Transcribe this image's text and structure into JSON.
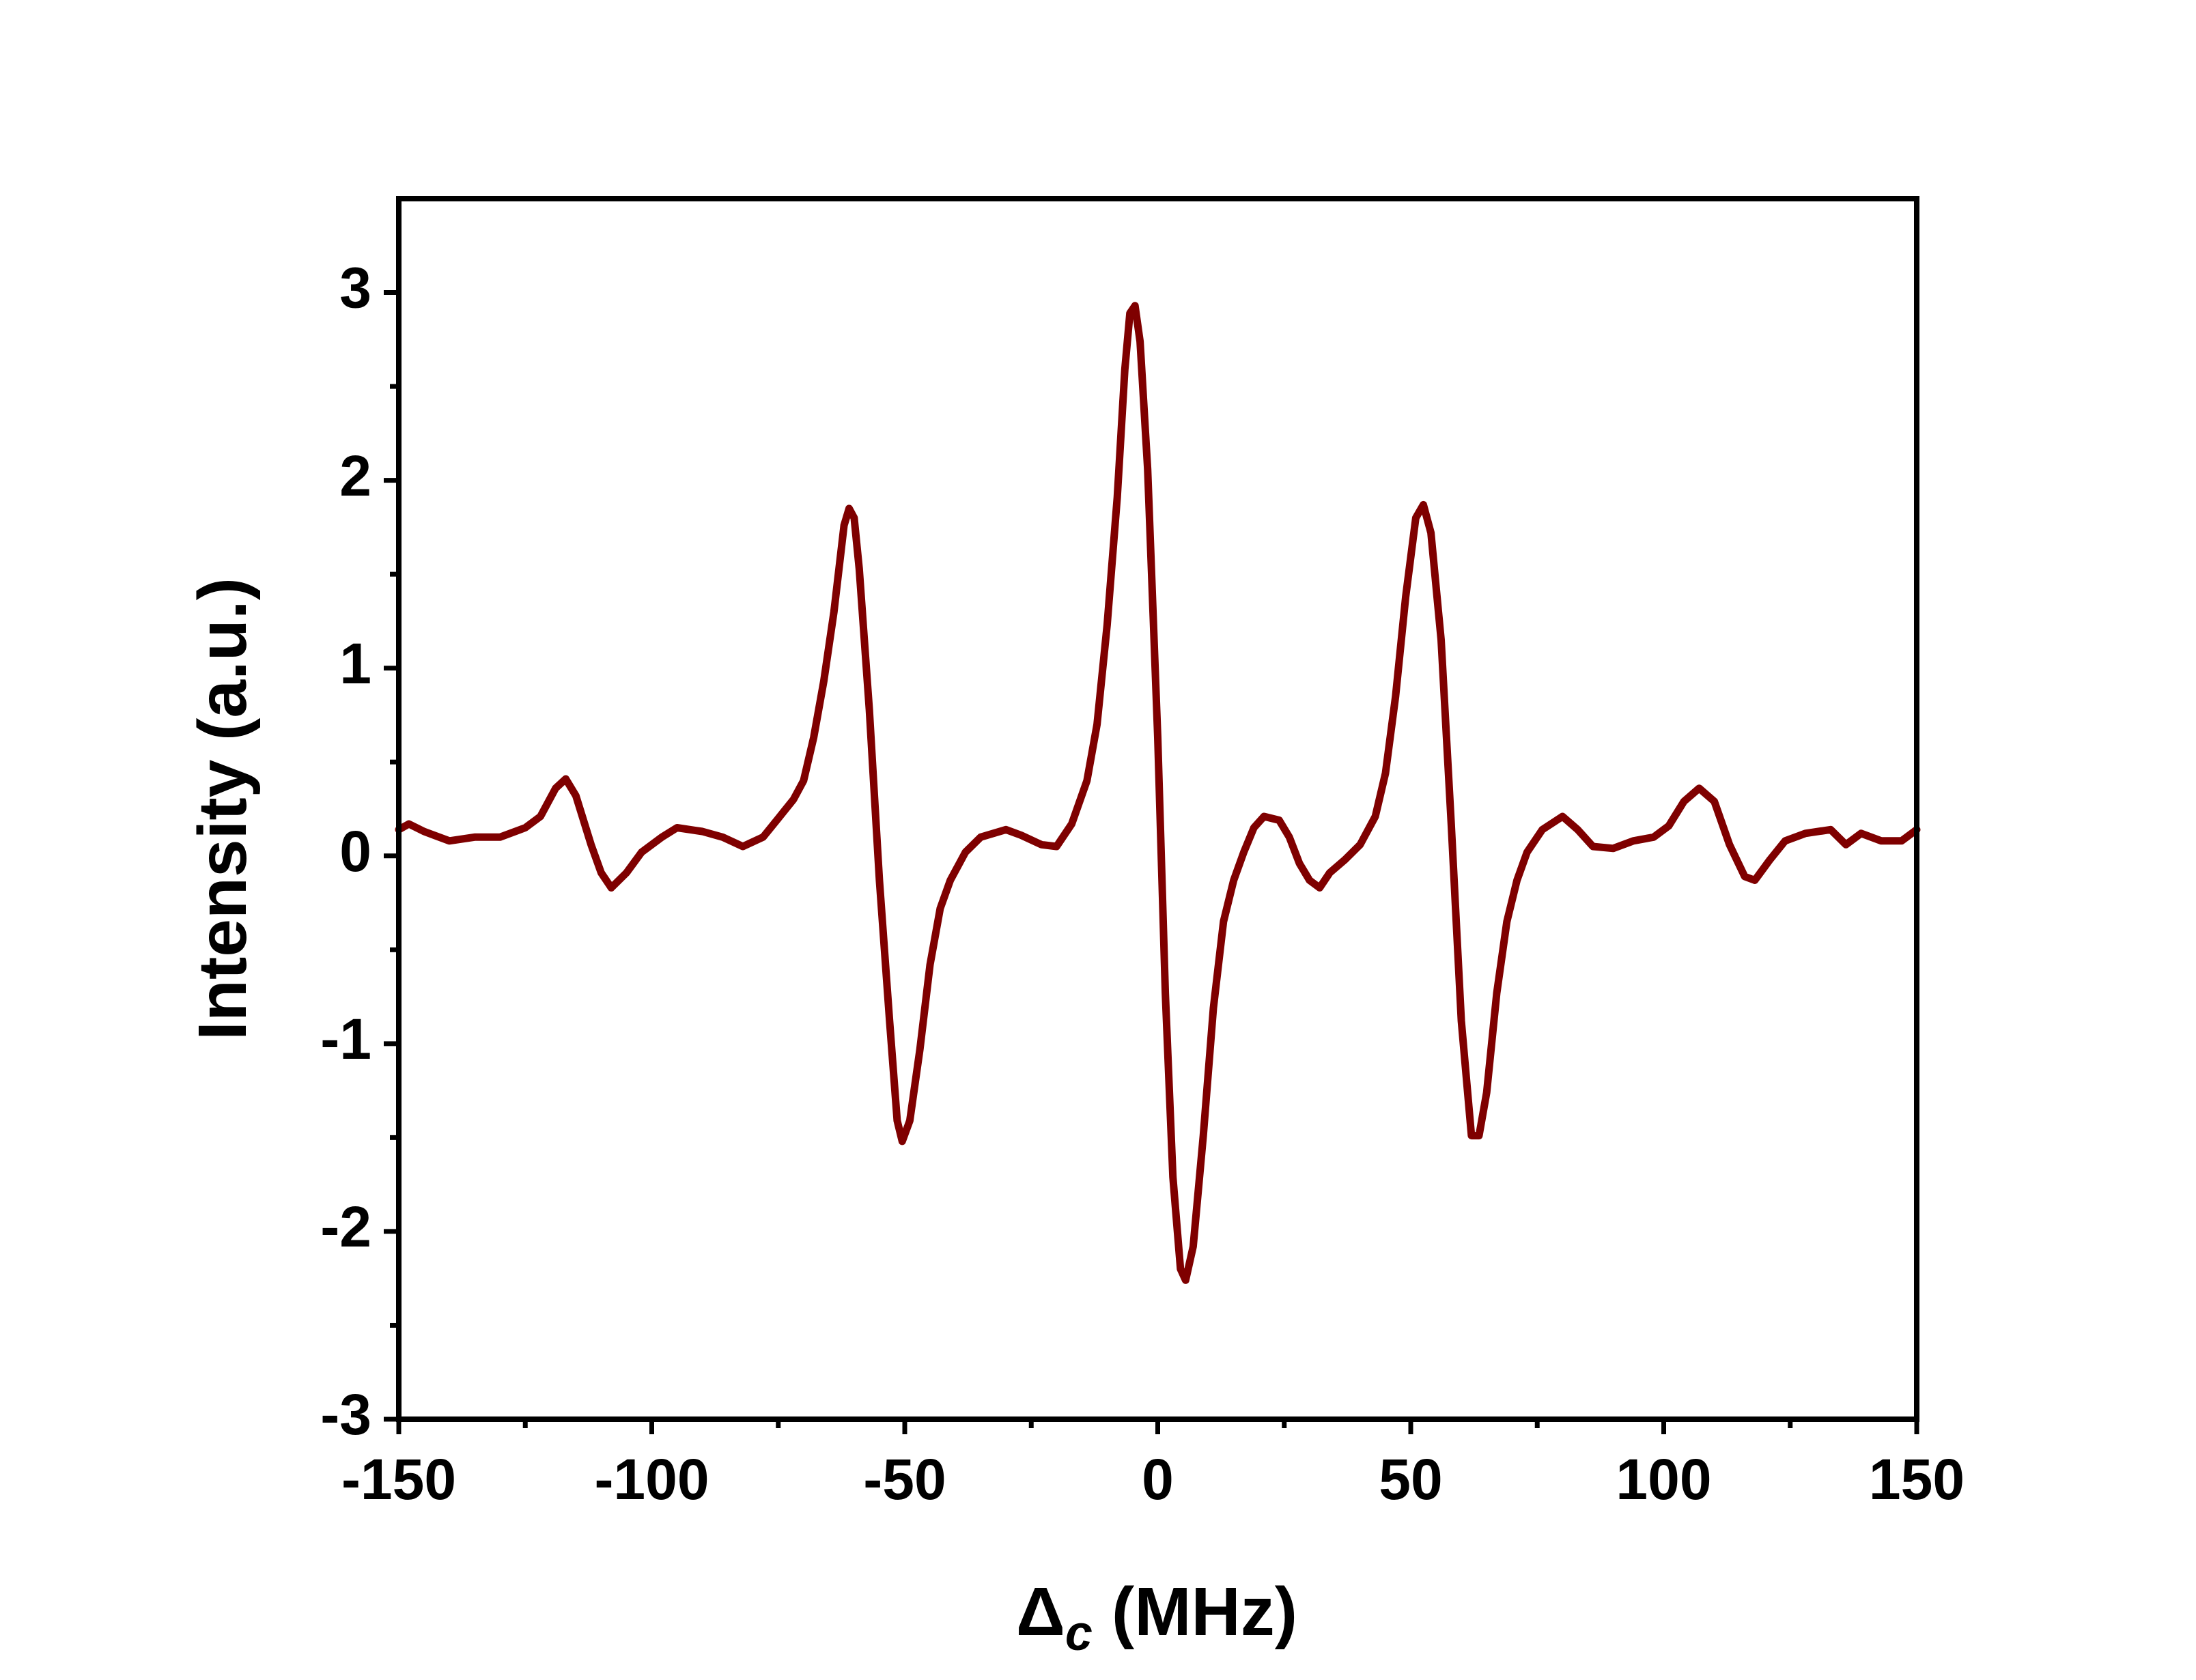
{
  "chart_data": {
    "type": "line",
    "x_label": {
      "symbol": "Δ",
      "subscript": "c",
      "unit": "(MHz)"
    },
    "y_label": "Intensity (a.u.)",
    "xlim": [
      -150,
      150
    ],
    "xticks": [
      -150,
      -100,
      -50,
      0,
      50,
      100,
      150
    ],
    "xminorticks": [
      -125,
      -75,
      -25,
      25,
      75,
      125
    ],
    "ylim": [
      -3,
      3.5
    ],
    "yticks": [
      -3,
      -2,
      -1,
      0,
      1,
      2,
      3
    ],
    "yminorticks": [
      -2.5,
      -1.5,
      -0.5,
      0.5,
      1.5,
      2.5
    ],
    "grid": false,
    "series": [
      {
        "color": "#7f0000",
        "x": [
          -150,
          -148,
          -145,
          -140,
          -135,
          -130,
          -125,
          -122,
          -119,
          -117,
          -115,
          -112,
          -110,
          -108,
          -105,
          -102,
          -98,
          -95,
          -90,
          -86,
          -82,
          -78,
          -75,
          -72,
          -70,
          -68,
          -66,
          -64,
          -62,
          -61,
          -60,
          -59,
          -57,
          -55,
          -53,
          -51.5,
          -50.5,
          -49,
          -47,
          -45,
          -43,
          -41,
          -38,
          -35,
          -30,
          -27,
          -23,
          -20,
          -17,
          -14,
          -12,
          -10,
          -8,
          -6.5,
          -5.5,
          -4.5,
          -3.5,
          -2,
          0,
          1.5,
          3,
          4.5,
          5.5,
          7,
          9,
          11,
          13,
          15,
          17,
          19,
          21,
          24,
          26,
          28,
          30,
          32,
          34,
          37,
          40,
          43,
          45,
          47,
          49,
          51,
          52.5,
          54,
          56,
          58,
          60,
          62,
          63.5,
          65,
          67,
          69,
          71,
          73,
          76,
          80,
          83,
          86,
          90,
          94,
          98,
          101,
          104,
          107,
          110,
          113,
          116,
          118,
          121,
          124,
          128,
          133,
          136,
          139,
          143,
          147,
          150
        ],
        "values": [
          0.14,
          0.17,
          0.13,
          0.08,
          0.1,
          0.1,
          0.15,
          0.21,
          0.36,
          0.41,
          0.32,
          0.06,
          -0.09,
          -0.17,
          -0.09,
          0.02,
          0.1,
          0.15,
          0.13,
          0.1,
          0.05,
          0.1,
          0.2,
          0.3,
          0.4,
          0.63,
          0.93,
          1.3,
          1.76,
          1.85,
          1.8,
          1.53,
          0.78,
          -0.13,
          -0.88,
          -1.41,
          -1.52,
          -1.41,
          -1.03,
          -0.58,
          -0.28,
          -0.13,
          0.02,
          0.1,
          0.14,
          0.11,
          0.06,
          0.05,
          0.17,
          0.4,
          0.7,
          1.23,
          1.91,
          2.59,
          2.89,
          2.93,
          2.74,
          2.06,
          0.63,
          -0.73,
          -1.71,
          -2.2,
          -2.26,
          -2.08,
          -1.49,
          -0.81,
          -0.35,
          -0.13,
          0.02,
          0.15,
          0.21,
          0.19,
          0.1,
          -0.04,
          -0.13,
          -0.17,
          -0.09,
          -0.02,
          0.06,
          0.21,
          0.44,
          0.85,
          1.38,
          1.8,
          1.87,
          1.72,
          1.15,
          0.17,
          -0.88,
          -1.49,
          -1.49,
          -1.26,
          -0.73,
          -0.35,
          -0.13,
          0.02,
          0.14,
          0.21,
          0.14,
          0.05,
          0.04,
          0.08,
          0.1,
          0.16,
          0.29,
          0.36,
          0.29,
          0.06,
          -0.11,
          -0.13,
          -0.02,
          0.08,
          0.12,
          0.14,
          0.06,
          0.12,
          0.08,
          0.08,
          0.14
        ]
      }
    ]
  }
}
